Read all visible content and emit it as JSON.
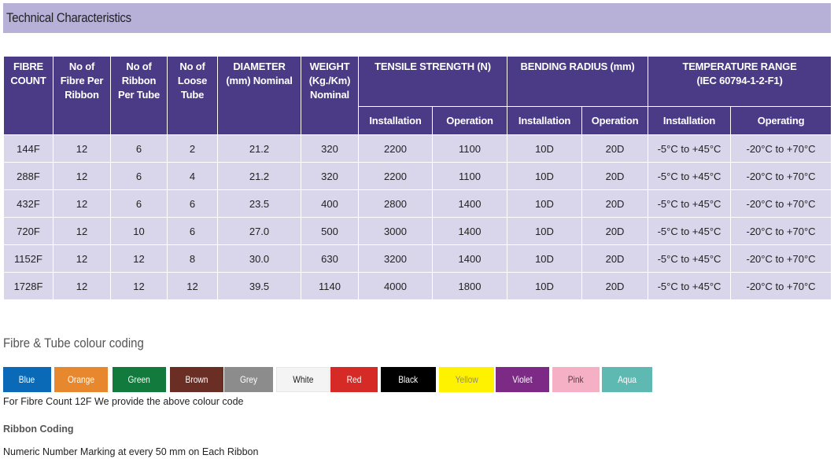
{
  "title": "Technical Characteristics",
  "table": {
    "headers": {
      "fibre_count": [
        "FIBRE",
        "COUNT"
      ],
      "fibre_per_ribbon": [
        "No of",
        "Fibre Per",
        "Ribbon"
      ],
      "ribbon_per_tube": [
        "No of",
        "Ribbon",
        "Per Tube"
      ],
      "loose_tube": [
        "No of",
        "Loose",
        "Tube"
      ],
      "diameter": [
        "DIAMETER",
        "(mm) Nominal"
      ],
      "weight": [
        "WEIGHT",
        "(Kg./Km)",
        "Nominal"
      ],
      "tensile": "TENSILE STRENGTH (N)",
      "bending": "BENDING RADIUS (mm)",
      "temperature": [
        "TEMPERATURE RANGE",
        "(IEC 60794-1-2-F1)"
      ],
      "tensile_sub": [
        "Installation",
        "Operation"
      ],
      "bending_sub": [
        "Installation",
        "Operation"
      ],
      "temperature_sub": [
        "Installation",
        "Operating"
      ]
    },
    "rows": [
      [
        "144F",
        "12",
        "6",
        "2",
        "21.2",
        "320",
        "2200",
        "1100",
        "10D",
        "20D",
        "-5°C to +45°C",
        "-20°C to +70°C"
      ],
      [
        "288F",
        "12",
        "6",
        "4",
        "21.2",
        "320",
        "2200",
        "1100",
        "10D",
        "20D",
        "-5°C to +45°C",
        "-20°C to +70°C"
      ],
      [
        "432F",
        "12",
        "6",
        "6",
        "23.5",
        "400",
        "2800",
        "1400",
        "10D",
        "20D",
        "-5°C to +45°C",
        "-20°C to +70°C"
      ],
      [
        "720F",
        "12",
        "10",
        "6",
        "27.0",
        "500",
        "3000",
        "1400",
        "10D",
        "20D",
        "-5°C to +45°C",
        "-20°C to +70°C"
      ],
      [
        "1152F",
        "12",
        "12",
        "8",
        "30.0",
        "630",
        "3200",
        "1400",
        "10D",
        "20D",
        "-5°C to +45°C",
        "-20°C to +70°C"
      ],
      [
        "1728F",
        "12",
        "12",
        "12",
        "39.5",
        "1140",
        "4000",
        "1800",
        "10D",
        "20D",
        "-5°C to +45°C",
        "-20°C to +70°C"
      ]
    ]
  },
  "colour_coding": {
    "title": "Fibre & Tube colour coding",
    "colors": [
      {
        "label": "Blue",
        "bg": "#0a6ab8",
        "fg": "#ffffff"
      },
      {
        "label": "Orange",
        "bg": "#e8882e",
        "fg": "#ffffff"
      },
      {
        "label": "Green",
        "bg": "#127a3c",
        "fg": "#ffffff"
      },
      {
        "label": "Brown",
        "bg": "#6b2e25",
        "fg": "#ffffff"
      },
      {
        "label": "Grey",
        "bg": "#8c8c8c",
        "fg": "#ffffff"
      },
      {
        "label": "White",
        "bg": "#f4f4f4",
        "fg": "#222222"
      },
      {
        "label": "Red",
        "bg": "#d62a26",
        "fg": "#ffffff"
      },
      {
        "label": "Black",
        "bg": "#000000",
        "fg": "#ffffff"
      },
      {
        "label": "Yellow",
        "bg": "#fff200",
        "fg": "#8a8a8a"
      },
      {
        "label": "Violet",
        "bg": "#7c2a85",
        "fg": "#ffffff"
      },
      {
        "label": "Pink",
        "bg": "#f6b0c6",
        "fg": "#444444"
      },
      {
        "label": "Aqua",
        "bg": "#5fb9b3",
        "fg": "#ffffff"
      }
    ],
    "note": "For Fibre Count 12F We provide the above colour code"
  },
  "ribbon_coding": {
    "title": "Ribbon Coding",
    "text": "Numeric Number Marking at every 50 mm on Each Ribbon"
  }
}
